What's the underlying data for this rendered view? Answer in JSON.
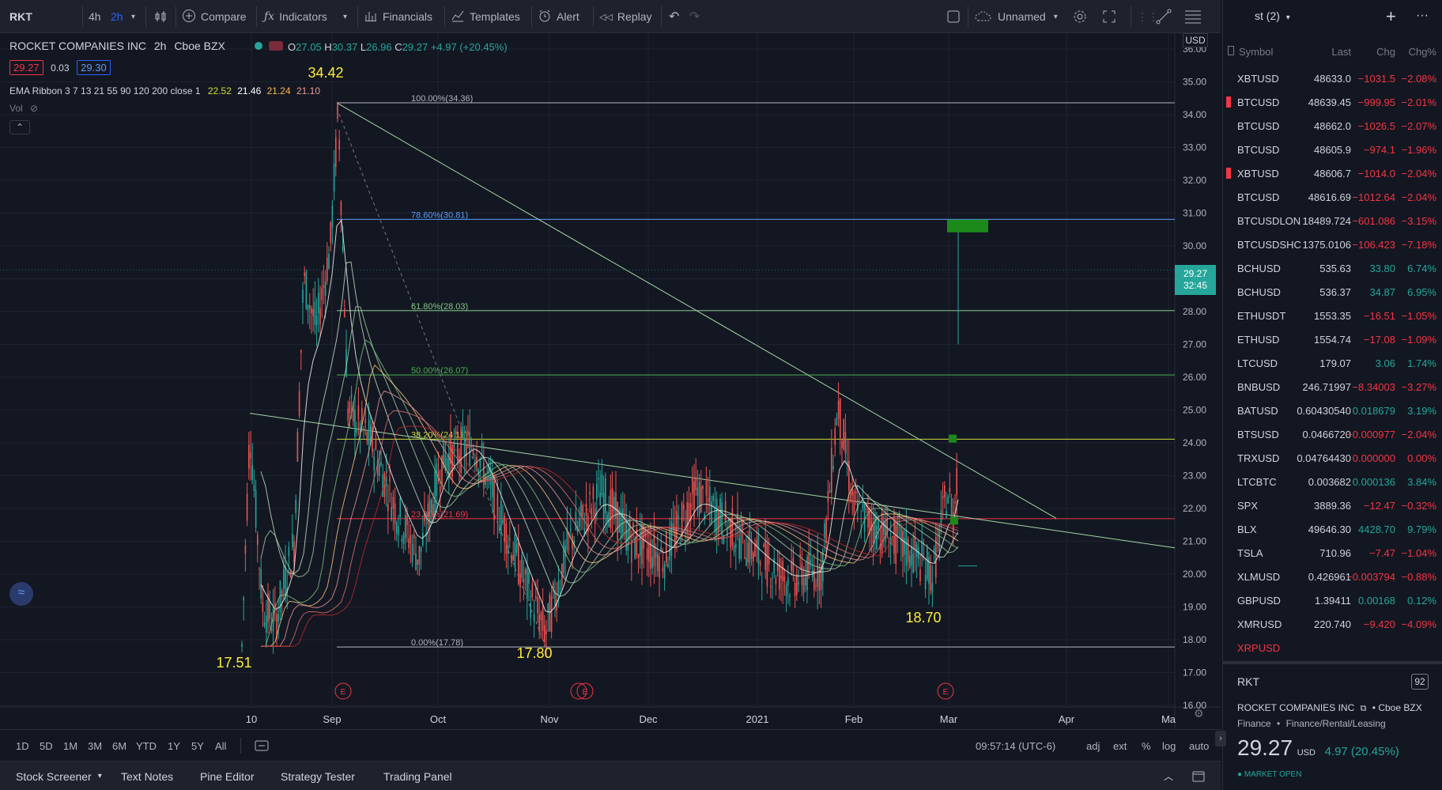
{
  "toolbar": {
    "symbol": "RKT",
    "intervals": [
      "4h",
      "2h"
    ],
    "compare": "Compare",
    "indicators": "Indicators",
    "financials": "Financials",
    "templates": "Templates",
    "alert": "Alert",
    "replay": "Replay",
    "layout_name": "Unnamed",
    "watchlist_title": "st (2)"
  },
  "legend": {
    "title": "ROCKET COMPANIES INC",
    "interval": "2h",
    "exchange": "Cboe BZX",
    "open": "27.05",
    "high": "30.37",
    "low": "26.96",
    "close": "29.27",
    "change": "+4.97 (+20.45%)",
    "o_label": "O",
    "h_label": "H",
    "l_label": "L",
    "c_label": "C",
    "bid": "29.27",
    "spread": "0.03",
    "ask": "29.30",
    "ema_label": "EMA Ribbon 3 7 13 21 55 90 120 200 close 1",
    "ema_values": [
      "22.52",
      "21.46",
      "21.24",
      "21.10"
    ],
    "vol": "Vol"
  },
  "chart_data": {
    "type": "candlestick",
    "currency": "USD",
    "ylim": [
      16,
      36
    ],
    "y_ticks": [
      "36.00",
      "35.00",
      "34.00",
      "33.00",
      "32.00",
      "31.00",
      "30.00",
      "29.00",
      "28.00",
      "27.00",
      "26.00",
      "25.00",
      "24.00",
      "23.00",
      "22.00",
      "21.00",
      "20.00",
      "19.00",
      "18.00",
      "17.00",
      "16.00"
    ],
    "x_ticks": [
      "10",
      "Sep",
      "Oct",
      "Nov",
      "Dec",
      "2021",
      "Feb",
      "Mar",
      "Apr",
      "Ma"
    ],
    "last_price": "29.27",
    "countdown": "32:45",
    "annotations": [
      "34.42",
      "17.51",
      "17.80",
      "18.70"
    ],
    "fib_levels": [
      {
        "label": "100.00%(34.36)",
        "price": 34.36,
        "color": "#b2b5be"
      },
      {
        "label": "78.60%(30.81)",
        "price": 30.81,
        "color": "#5b9cf6"
      },
      {
        "label": "61.80%(28.03)",
        "price": 28.03,
        "color": "#81c784"
      },
      {
        "label": "50.00%(26.07)",
        "price": 26.07,
        "color": "#4caf50"
      },
      {
        "label": "38.20%(24.11)",
        "price": 24.11,
        "color": "#cddc39"
      },
      {
        "label": "23.60%(21.69)",
        "price": 21.69,
        "color": "#f23645"
      },
      {
        "label": "0.00%(17.78)",
        "price": 17.78,
        "color": "#b2b5be"
      }
    ],
    "earnings_marker": "E"
  },
  "range": {
    "buttons": [
      "1D",
      "5D",
      "1M",
      "3M",
      "6M",
      "YTD",
      "1Y",
      "5Y",
      "All"
    ],
    "time": "09:57:14 (UTC-6)",
    "options": [
      "adj",
      "ext",
      "%",
      "log",
      "auto"
    ]
  },
  "bottom_tabs": [
    "Stock Screener",
    "Text Notes",
    "Pine Editor",
    "Strategy Tester",
    "Trading Panel"
  ],
  "watchlist": {
    "headers": [
      "Symbol",
      "Last",
      "Chg",
      "Chg%"
    ],
    "rows": [
      {
        "symbol": "XBTUSD",
        "last": "48633.0",
        "chg": "−1031.5",
        "pct": "−2.08%",
        "flag": false,
        "dir": "neg"
      },
      {
        "symbol": "BTCUSD",
        "last": "48639.45",
        "chg": "−999.95",
        "pct": "−2.01%",
        "flag": true,
        "dir": "neg"
      },
      {
        "symbol": "BTCUSD",
        "last": "48662.0",
        "chg": "−1026.5",
        "pct": "−2.07%",
        "flag": false,
        "dir": "neg"
      },
      {
        "symbol": "BTCUSD",
        "last": "48605.9",
        "chg": "−974.1",
        "pct": "−1.96%",
        "flag": false,
        "dir": "neg"
      },
      {
        "symbol": "XBTUSD",
        "last": "48606.7",
        "chg": "−1014.0",
        "pct": "−2.04%",
        "flag": true,
        "dir": "neg"
      },
      {
        "symbol": "BTCUSD",
        "last": "48616.69",
        "chg": "−1012.64",
        "pct": "−2.04%",
        "flag": false,
        "dir": "neg"
      },
      {
        "symbol": "BTCUSDLON",
        "last": "18489.724",
        "chg": "−601.086",
        "pct": "−3.15%",
        "flag": false,
        "dir": "neg"
      },
      {
        "symbol": "BTCUSDSHC",
        "last": "1375.0106",
        "chg": "−106.423",
        "pct": "−7.18%",
        "flag": false,
        "dir": "neg"
      },
      {
        "symbol": "BCHUSD",
        "last": "535.63",
        "chg": "33.80",
        "pct": "6.74%",
        "flag": false,
        "dir": "pos"
      },
      {
        "symbol": "BCHUSD",
        "last": "536.37",
        "chg": "34.87",
        "pct": "6.95%",
        "flag": false,
        "dir": "pos"
      },
      {
        "symbol": "ETHUSDT",
        "last": "1553.35",
        "chg": "−16.51",
        "pct": "−1.05%",
        "flag": false,
        "dir": "neg"
      },
      {
        "symbol": "ETHUSD",
        "last": "1554.74",
        "chg": "−17.08",
        "pct": "−1.09%",
        "flag": false,
        "dir": "neg"
      },
      {
        "symbol": "LTCUSD",
        "last": "179.07",
        "chg": "3.06",
        "pct": "1.74%",
        "flag": false,
        "dir": "pos"
      },
      {
        "symbol": "BNBUSD",
        "last": "246.71997",
        "chg": "−8.34003",
        "pct": "−3.27%",
        "flag": false,
        "dir": "neg"
      },
      {
        "symbol": "BATUSD",
        "last": "0.60430540",
        "chg": "0.018679",
        "pct": "3.19%",
        "flag": false,
        "dir": "pos"
      },
      {
        "symbol": "BTSUSD",
        "last": "0.0466720",
        "chg": "−0.000977",
        "pct": "−2.04%",
        "flag": false,
        "dir": "neg"
      },
      {
        "symbol": "TRXUSD",
        "last": "0.04764430",
        "chg": "0.000000",
        "pct": "0.00%",
        "flag": false,
        "dir": "neg"
      },
      {
        "symbol": "LTCBTC",
        "last": "0.003682",
        "chg": "0.000136",
        "pct": "3.84%",
        "flag": false,
        "dir": "pos"
      },
      {
        "symbol": "SPX",
        "last": "3889.36",
        "chg": "−12.47",
        "pct": "−0.32%",
        "flag": false,
        "dir": "neg"
      },
      {
        "symbol": "BLX",
        "last": "49646.30",
        "chg": "4428.70",
        "pct": "9.79%",
        "flag": false,
        "dir": "pos"
      },
      {
        "symbol": "TSLA",
        "last": "710.96",
        "chg": "−7.47",
        "pct": "−1.04%",
        "flag": false,
        "dir": "neg"
      },
      {
        "symbol": "XLMUSD",
        "last": "0.426961",
        "chg": "−0.003794",
        "pct": "−0.88%",
        "flag": false,
        "dir": "neg"
      },
      {
        "symbol": "GBPUSD",
        "last": "1.39411",
        "chg": "0.00168",
        "pct": "0.12%",
        "flag": false,
        "dir": "pos"
      },
      {
        "symbol": "XMRUSD",
        "last": "220.740",
        "chg": "−9.420",
        "pct": "−4.09%",
        "flag": false,
        "dir": "neg"
      },
      {
        "symbol": "XRPUSD",
        "last": "",
        "chg": "",
        "pct": "",
        "flag": false,
        "dir": "neg"
      }
    ]
  },
  "details": {
    "symbol": "RKT",
    "badge": "92",
    "company": "ROCKET COMPANIES INC",
    "exchange": "Cboe BZX",
    "sector": "Finance",
    "industry": "Finance/Rental/Leasing",
    "price": "29.27",
    "currency": "USD",
    "change": "4.97 (20.45%)",
    "status": "MARKET OPEN"
  }
}
